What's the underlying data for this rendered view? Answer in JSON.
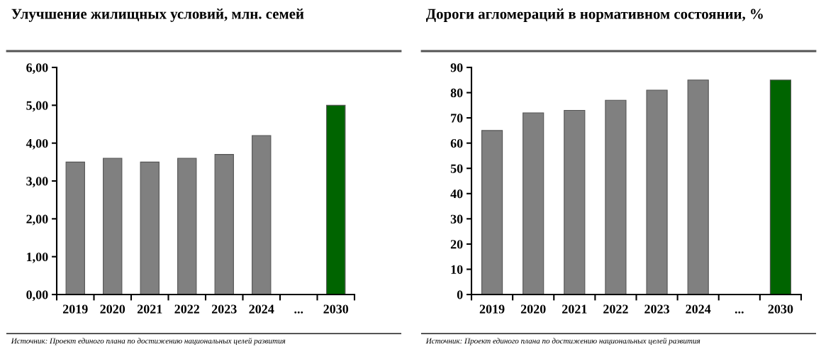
{
  "chart_data": [
    {
      "type": "bar",
      "title": "Улучшение жилищных условий, млн. семей",
      "categories": [
        "2019",
        "2020",
        "2021",
        "2022",
        "2023",
        "2024",
        "...",
        "2030"
      ],
      "values": [
        3.5,
        3.6,
        3.5,
        3.6,
        3.7,
        4.2,
        null,
        5.0
      ],
      "colors": [
        "#808080",
        "#808080",
        "#808080",
        "#808080",
        "#808080",
        "#808080",
        "#808080",
        "#006400"
      ],
      "ylim": [
        0,
        6
      ],
      "yticks": [
        {
          "value": 0,
          "label": "0,00"
        },
        {
          "value": 1,
          "label": "1,00"
        },
        {
          "value": 2,
          "label": "2,00"
        },
        {
          "value": 3,
          "label": "3,00"
        },
        {
          "value": 4,
          "label": "4,00"
        },
        {
          "value": 5,
          "label": "5,00"
        },
        {
          "value": 6,
          "label": "6,00"
        }
      ],
      "grid": false,
      "annotations": [
        "Источник: Проект единого плана по достижению национальных целей развития"
      ]
    },
    {
      "type": "bar",
      "title": "Дороги агломераций в нормативном состоянии, %",
      "categories": [
        "2019",
        "2020",
        "2021",
        "2022",
        "2023",
        "2024",
        "...",
        "2030"
      ],
      "values": [
        65,
        72,
        73,
        77,
        81,
        85,
        null,
        85
      ],
      "colors": [
        "#808080",
        "#808080",
        "#808080",
        "#808080",
        "#808080",
        "#808080",
        "#808080",
        "#006400"
      ],
      "ylim": [
        0,
        90
      ],
      "yticks": [
        0,
        10,
        20,
        30,
        40,
        50,
        60,
        70,
        80,
        90
      ],
      "grid": false,
      "annotations": [
        "Источник: Проект единого плана по достижению национальных целей развития"
      ]
    }
  ]
}
